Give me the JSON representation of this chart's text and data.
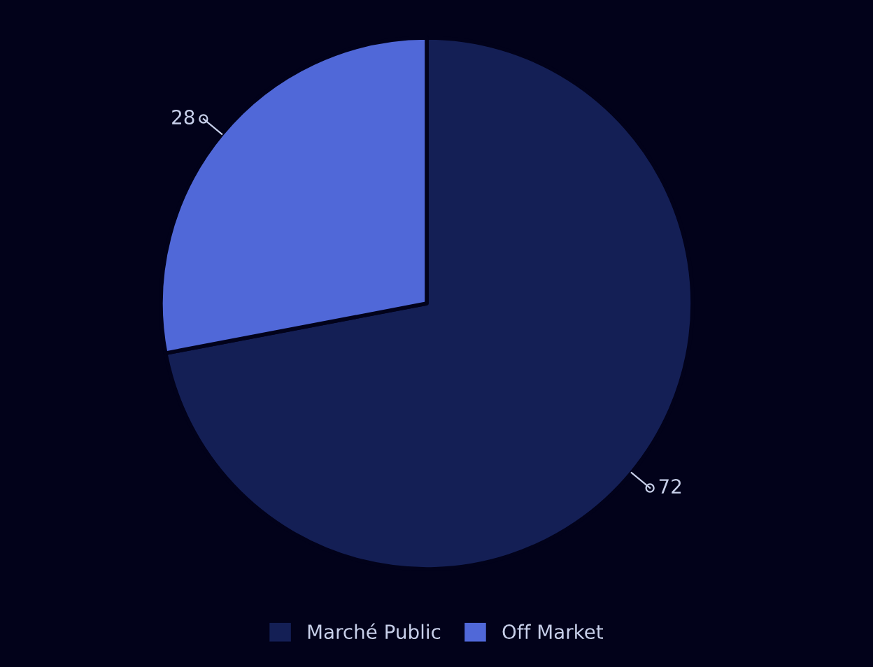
{
  "chart_data": {
    "type": "pie",
    "categories": [
      "Marché Public",
      "Off Market"
    ],
    "values": [
      72,
      28
    ],
    "colors": [
      "#141f55",
      "#5068d8"
    ],
    "data_labels": true,
    "legend": "bottom"
  }
}
